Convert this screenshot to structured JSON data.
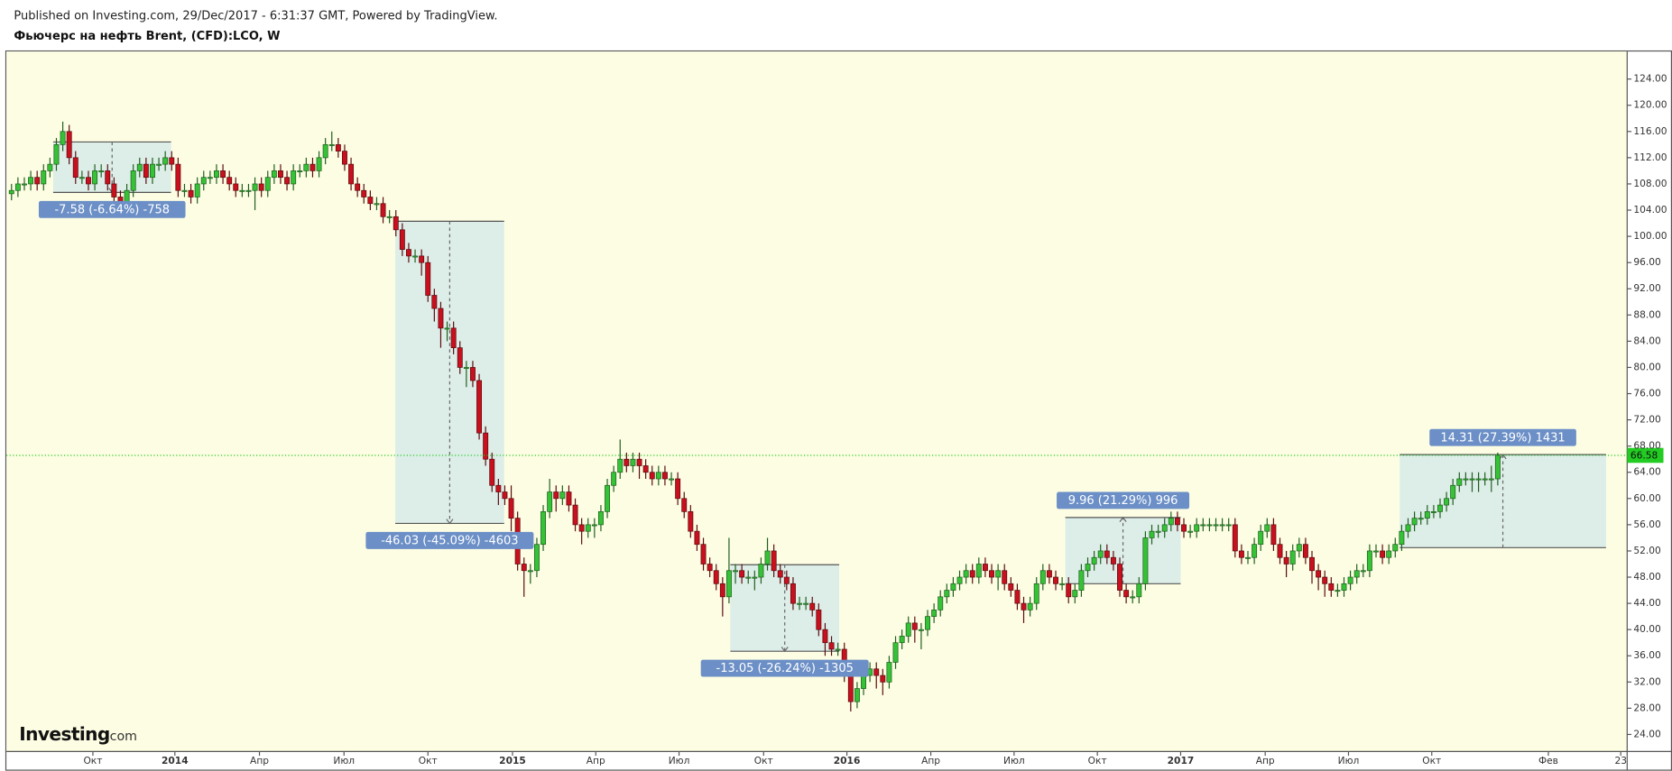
{
  "chart_data": {
    "type": "candlestick",
    "source": "Published on Investing.com, 29/Dec/2017 - 6:31:37 GMT, Powered by TradingView.",
    "title": "Фьючерс на нефть Brent, (CFD):LCO, W",
    "logo": {
      "name": "Investing",
      "suffix": ".com"
    },
    "up_color": "#36c236",
    "down_color": "#c8101e",
    "open": [
      106.5,
      107,
      108,
      108,
      109,
      108,
      110,
      111,
      114,
      116,
      112,
      109,
      109,
      108,
      110,
      110,
      108,
      106,
      105,
      107,
      110,
      111,
      109,
      111,
      111,
      112,
      111,
      107,
      107,
      106,
      108,
      109,
      109,
      110,
      109,
      108,
      107,
      107,
      107,
      108,
      107,
      109,
      110,
      109,
      108,
      110,
      110,
      111,
      110,
      112,
      114,
      114,
      113,
      111,
      108,
      107,
      106,
      105,
      105,
      103,
      103,
      101,
      98,
      97,
      97,
      96,
      91,
      89,
      86,
      86,
      83,
      80,
      80,
      78,
      70,
      66,
      62,
      61,
      60,
      57,
      50,
      49,
      49,
      53,
      58,
      61,
      60,
      61,
      59,
      56,
      55,
      56,
      56,
      58,
      62,
      64,
      66,
      65,
      66,
      65,
      64,
      63,
      64,
      63,
      63,
      60,
      58,
      55,
      53,
      50,
      49,
      47,
      45,
      49,
      49,
      48,
      48,
      48,
      50,
      52,
      49,
      48,
      47,
      44,
      44,
      44,
      43,
      40,
      38,
      37,
      37,
      34,
      29,
      31,
      33,
      34,
      33,
      32,
      35,
      38,
      39,
      41,
      40,
      40,
      42,
      43,
      45,
      46,
      47,
      48,
      49,
      48,
      50,
      49,
      48,
      49,
      47,
      46,
      44,
      43,
      44,
      47,
      49,
      48,
      47,
      47,
      45,
      46,
      49,
      50,
      51,
      52,
      51,
      50,
      46,
      45,
      45,
      47,
      54,
      55,
      55,
      56,
      57,
      56,
      55,
      55,
      56,
      56,
      56,
      56,
      56,
      56,
      52,
      51,
      51,
      53,
      55,
      56,
      53,
      51,
      50,
      52,
      53,
      51,
      49,
      48,
      47,
      46,
      46,
      47,
      48,
      49,
      49,
      52,
      52,
      51,
      52,
      53,
      55,
      56,
      57,
      57,
      58,
      58,
      59,
      60,
      62,
      63,
      63,
      63,
      63,
      63,
      63
    ],
    "high": [
      108,
      109,
      109,
      110,
      110,
      111,
      112,
      115,
      117.5,
      117,
      113,
      110,
      110,
      111,
      111,
      111,
      109,
      107,
      108,
      111,
      112,
      112,
      112,
      112,
      113,
      113,
      112,
      108,
      108,
      109,
      110,
      110,
      111,
      111,
      110,
      109,
      108,
      108,
      109,
      109,
      110,
      111,
      111,
      110,
      111,
      111,
      112,
      112,
      113,
      115,
      116,
      115,
      114,
      112,
      109,
      108,
      107,
      106,
      106,
      104,
      104,
      102,
      99,
      98,
      98,
      97,
      92,
      90,
      87,
      87,
      84,
      81,
      81,
      79,
      71,
      67,
      63,
      62,
      62,
      58,
      51,
      50,
      54,
      59,
      63,
      62,
      62,
      62,
      60,
      57,
      57,
      57,
      59,
      63,
      65,
      69,
      67,
      67,
      67,
      66,
      65,
      65,
      65,
      64,
      64,
      61,
      59,
      56,
      54,
      51,
      50,
      48,
      54,
      50,
      50,
      49,
      49,
      51,
      54,
      53,
      50,
      49,
      48,
      45,
      45,
      45,
      44,
      41,
      39,
      38,
      38,
      35,
      32,
      34,
      35,
      35,
      34,
      36,
      39,
      40,
      42,
      42,
      41,
      43,
      44,
      46,
      47,
      48,
      49,
      50,
      50,
      51,
      51,
      50,
      50,
      50,
      48,
      47,
      45,
      45,
      48,
      50,
      50,
      49,
      48,
      48,
      47,
      50,
      51,
      52,
      53,
      53,
      52,
      51,
      47,
      46,
      48,
      55,
      56,
      56,
      57,
      58,
      58,
      57,
      56,
      57,
      57,
      57,
      57,
      57,
      57,
      57,
      53,
      52,
      54,
      56,
      57,
      57,
      54,
      52,
      53,
      54,
      54,
      52,
      50,
      49,
      48,
      47,
      48,
      49,
      50,
      50,
      53,
      53,
      53,
      53,
      54,
      56,
      57,
      58,
      58,
      59,
      59,
      60,
      61,
      63,
      64,
      64,
      64,
      64,
      64,
      65,
      67
    ],
    "low": [
      105.5,
      106,
      107,
      107,
      107,
      107,
      109,
      110,
      113,
      111,
      108,
      108,
      107,
      107,
      109,
      107,
      105,
      104,
      104,
      106,
      109,
      108,
      108,
      110,
      110,
      110,
      106,
      106,
      105,
      105,
      107,
      108,
      108,
      108,
      107,
      106,
      106,
      106,
      104,
      106,
      106,
      108,
      108,
      107,
      107,
      109,
      109,
      109,
      109,
      111,
      113,
      112,
      110,
      107,
      106,
      105,
      104,
      104,
      102,
      102,
      100,
      97,
      96,
      96,
      94,
      90,
      87,
      83,
      84,
      82,
      79,
      77,
      77,
      69,
      65,
      61,
      59,
      59,
      55,
      49,
      45,
      47,
      48,
      52,
      57,
      58,
      59,
      58,
      55,
      53,
      54,
      54,
      55,
      57,
      61,
      63,
      64,
      64,
      63,
      63,
      62,
      62,
      62,
      62,
      59,
      57,
      54,
      52,
      49,
      48,
      46,
      42,
      44,
      47,
      47,
      47,
      46,
      47,
      49,
      48,
      47,
      46,
      43,
      43,
      43,
      42,
      39,
      36,
      36,
      36,
      32,
      27.5,
      28,
      30,
      32,
      31,
      30,
      31,
      34,
      37,
      38,
      38,
      37,
      39,
      41,
      42,
      44,
      45,
      46,
      47,
      47,
      47,
      48,
      47,
      46,
      46,
      45,
      43,
      41,
      42,
      43,
      46,
      47,
      46,
      46,
      44,
      44,
      45,
      48,
      49,
      50,
      50,
      49,
      45,
      44,
      44,
      44,
      46,
      53,
      54,
      54,
      55,
      55,
      54,
      54,
      54,
      55,
      55,
      55,
      55,
      55,
      51,
      50,
      50,
      50,
      52,
      54,
      52,
      50,
      48,
      49,
      51,
      50,
      47,
      46,
      45,
      45,
      45,
      45,
      46,
      47,
      48,
      48,
      51,
      50,
      50,
      51,
      52,
      54,
      55,
      56,
      56,
      57,
      57,
      58,
      59,
      61,
      62,
      61,
      61,
      62,
      61,
      62
    ],
    "close": [
      107,
      108,
      108,
      109,
      108,
      110,
      111,
      114,
      116,
      112,
      109,
      109,
      108,
      110,
      110,
      108,
      106,
      105,
      107,
      110,
      111,
      109,
      111,
      111,
      112,
      111,
      107,
      107,
      106,
      108,
      109,
      109,
      110,
      109,
      108,
      107,
      107,
      107,
      108,
      107,
      109,
      110,
      109,
      108,
      110,
      110,
      111,
      110,
      112,
      114,
      114,
      113,
      111,
      108,
      107,
      106,
      105,
      105,
      103,
      103,
      101,
      98,
      97,
      97,
      96,
      91,
      89,
      86,
      86,
      83,
      80,
      80,
      78,
      70,
      66,
      62,
      61,
      60,
      57,
      50,
      49,
      49,
      53,
      58,
      61,
      60,
      61,
      59,
      56,
      55,
      56,
      56,
      58,
      62,
      64,
      66,
      65,
      66,
      65,
      64,
      63,
      64,
      63,
      63,
      60,
      58,
      55,
      53,
      50,
      49,
      47,
      45,
      49,
      49,
      48,
      48,
      48,
      50,
      52,
      49,
      48,
      47,
      44,
      44,
      44,
      43,
      40,
      38,
      37,
      37,
      34,
      29,
      31,
      33,
      34,
      33,
      32,
      35,
      38,
      39,
      41,
      40,
      40,
      42,
      43,
      45,
      46,
      47,
      48,
      49,
      48,
      50,
      49,
      48,
      49,
      47,
      46,
      44,
      43,
      44,
      47,
      49,
      48,
      47,
      47,
      45,
      46,
      49,
      50,
      51,
      52,
      51,
      50,
      46,
      45,
      45,
      47,
      54,
      55,
      55,
      56,
      57,
      56,
      55,
      55,
      56,
      56,
      56,
      56,
      56,
      56,
      52,
      51,
      51,
      53,
      55,
      56,
      53,
      51,
      50,
      52,
      53,
      51,
      49,
      48,
      47,
      46,
      46,
      47,
      48,
      49,
      49,
      52,
      52,
      51,
      52,
      53,
      55,
      56,
      57,
      57,
      58,
      58,
      59,
      60,
      62,
      63,
      63,
      63,
      63,
      63,
      63,
      66.58
    ],
    "last_price": 66.58,
    "last_price_color": "#22cc22",
    "measurements": [
      {
        "x0": 6.5,
        "x1": 24.9,
        "start": 114.4,
        "end": 106.7,
        "label": "-7.58 (-6.64%) -758"
      },
      {
        "x0": 59.9,
        "x1": 76.9,
        "start": 102.3,
        "end": 56.2,
        "label": "-46.03 (-45.09%) -4603"
      },
      {
        "x0": 112.2,
        "x1": 129.2,
        "start": 49.9,
        "end": 36.7,
        "label": "-13.05 (-26.24%) -1305"
      },
      {
        "x0": 164.5,
        "x1": 182.5,
        "start": 47.0,
        "end": 57.1,
        "label": "9.96 (21.29%) 996"
      },
      {
        "x0": 216.7,
        "x1": 248.9,
        "start": 52.5,
        "end": 66.7,
        "label": "14.31 (27.39%) 1431"
      }
    ],
    "xlim": [
      -0.8,
      252.2
    ],
    "xticks": [
      {
        "value": 12.7,
        "label": "Окт"
      },
      {
        "value": 25.5,
        "label": "2014"
      },
      {
        "value": 38.7,
        "label": "Апр"
      },
      {
        "value": 51.9,
        "label": "Июл"
      },
      {
        "value": 65.0,
        "label": "Окт"
      },
      {
        "value": 78.2,
        "label": "2015"
      },
      {
        "value": 91.2,
        "label": "Апр"
      },
      {
        "value": 104.2,
        "label": "Июл"
      },
      {
        "value": 117.4,
        "label": "Окт"
      },
      {
        "value": 130.4,
        "label": "2016"
      },
      {
        "value": 143.5,
        "label": "Апр"
      },
      {
        "value": 156.5,
        "label": "Июл"
      },
      {
        "value": 169.5,
        "label": "Окт"
      },
      {
        "value": 182.5,
        "label": "2017"
      },
      {
        "value": 195.7,
        "label": "Апр"
      },
      {
        "value": 208.7,
        "label": "Июл"
      },
      {
        "value": 221.7,
        "label": "Окт"
      },
      {
        "value": 239.9,
        "label": "Фев"
      },
      {
        "value": 251.2,
        "label": "23"
      }
    ],
    "ylim": [
      21.4,
      128.2
    ],
    "yticks": [
      {
        "value": 24,
        "label": "24.00"
      },
      {
        "value": 28,
        "label": "28.00"
      },
      {
        "value": 32,
        "label": "32.00"
      },
      {
        "value": 36,
        "label": "36.00"
      },
      {
        "value": 40,
        "label": "40.00"
      },
      {
        "value": 44,
        "label": "44.00"
      },
      {
        "value": 48,
        "label": "48.00"
      },
      {
        "value": 52,
        "label": "52.00"
      },
      {
        "value": 56,
        "label": "56.00"
      },
      {
        "value": 60,
        "label": "60.00"
      },
      {
        "value": 64,
        "label": "64.00"
      },
      {
        "value": 68,
        "label": "68.00"
      },
      {
        "value": 72,
        "label": "72.00"
      },
      {
        "value": 76,
        "label": "76.00"
      },
      {
        "value": 80,
        "label": "80.00"
      },
      {
        "value": 84,
        "label": "84.00"
      },
      {
        "value": 88,
        "label": "88.00"
      },
      {
        "value": 92,
        "label": "92.00"
      },
      {
        "value": 96,
        "label": "96.00"
      },
      {
        "value": 100,
        "label": "100.00"
      },
      {
        "value": 104,
        "label": "104.00"
      },
      {
        "value": 108,
        "label": "108.00"
      },
      {
        "value": 112,
        "label": "112.00"
      },
      {
        "value": 116,
        "label": "116.00"
      },
      {
        "value": 120,
        "label": "120.00"
      },
      {
        "value": 124,
        "label": "124.00"
      }
    ]
  }
}
